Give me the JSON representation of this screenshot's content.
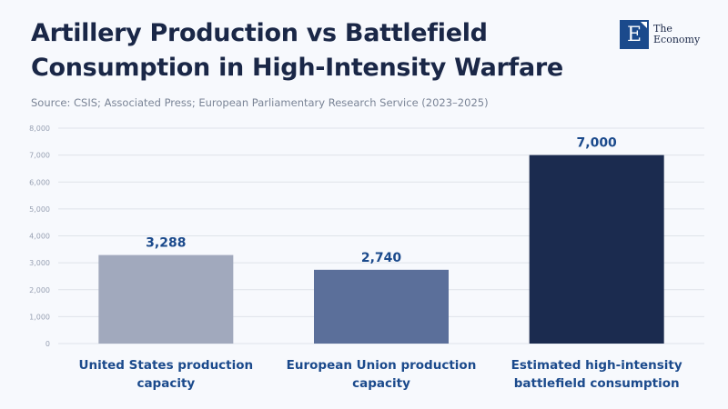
{
  "title": "Artillery Production vs Battlefield Consumption in High-Intensity Warfare",
  "source": "Source: CSIS; Associated Press; European Parliamentary Research Service (2023–2025)",
  "logo": {
    "mark": "E",
    "line1": "The",
    "line2": "Economy"
  },
  "chart_data": {
    "type": "bar",
    "title": "Artillery Production vs Battlefield Consumption in High-Intensity Warfare",
    "categories": [
      "United States production capacity",
      "European Union production capacity",
      "Estimated high-intensity battlefield consumption"
    ],
    "category_lines": [
      [
        "United States production",
        "capacity"
      ],
      [
        "European Union production",
        "capacity"
      ],
      [
        "Estimated high-intensity",
        "battlefield consumption"
      ]
    ],
    "values": [
      3288,
      2740,
      7000
    ],
    "value_labels": [
      "3,288",
      "2,740",
      "7,000"
    ],
    "colors": [
      "#a1a9bd",
      "#5b6f9a",
      "#1b2b4f"
    ],
    "ylim": [
      0,
      8000
    ],
    "yticks": [
      0,
      1000,
      2000,
      3000,
      4000,
      5000,
      6000,
      7000,
      8000
    ],
    "ytick_labels": [
      "0",
      "1,000",
      "2,000",
      "3,000",
      "4,000",
      "5,000",
      "6,000",
      "7,000",
      "8,000"
    ],
    "xlabel": "",
    "ylabel": "",
    "grid": true
  }
}
